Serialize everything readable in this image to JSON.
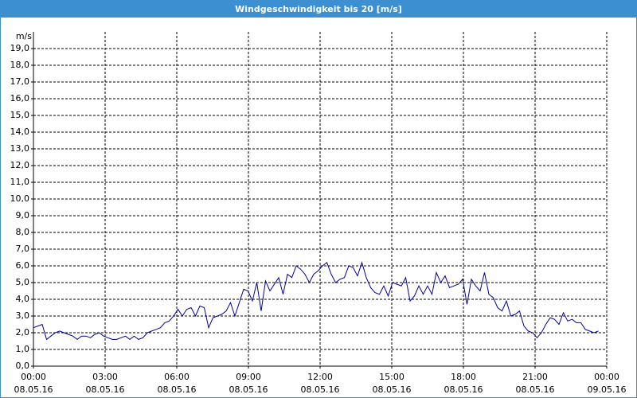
{
  "window_title": "Windgeschwindigkeit bis 20 [m/s]",
  "chart_data": {
    "type": "line",
    "y_unit_label": "m/s",
    "x": [
      0,
      11,
      22,
      33,
      44,
      55,
      66,
      77,
      88,
      99,
      110,
      121,
      132,
      143,
      154,
      165,
      176,
      187,
      198,
      209,
      220,
      231,
      242,
      253,
      264,
      275,
      286,
      297,
      308,
      319,
      330,
      341,
      352,
      363,
      374,
      385,
      396,
      407,
      418,
      429,
      440,
      451,
      462,
      473,
      484,
      495,
      506,
      517,
      528,
      539,
      550,
      561,
      572,
      583,
      594,
      605,
      616,
      627,
      638,
      649,
      660,
      671,
      682,
      693,
      704,
      715,
      726,
      737,
      748,
      759,
      770,
      781,
      792,
      803,
      814,
      825,
      836,
      847,
      858,
      869,
      880,
      891,
      902,
      913,
      924,
      935,
      946,
      957,
      968,
      979,
      990,
      1001,
      1012,
      1023,
      1034,
      1045,
      1056,
      1067,
      1078,
      1089,
      1100,
      1111,
      1122,
      1133,
      1144,
      1155,
      1166,
      1177,
      1188,
      1199,
      1210,
      1221,
      1232,
      1243,
      1254,
      1265,
      1276,
      1287,
      1298,
      1309,
      1320,
      1331,
      1342,
      1353,
      1364,
      1375,
      1386,
      1397,
      1408,
      1419
    ],
    "series": [
      {
        "name": "Windgeschwindigkeit",
        "color": "#0000a0",
        "values": [
          2.3,
          2.4,
          2.5,
          1.6,
          1.8,
          2.0,
          2.1,
          2.0,
          1.9,
          1.8,
          1.6,
          1.8,
          1.8,
          1.7,
          1.9,
          2.0,
          1.8,
          1.7,
          1.6,
          1.6,
          1.7,
          1.8,
          1.6,
          1.8,
          1.6,
          1.7,
          2.0,
          2.1,
          2.2,
          2.3,
          2.6,
          2.7,
          3.0,
          3.4,
          3.0,
          3.4,
          3.5,
          3.0,
          3.6,
          3.5,
          2.3,
          2.9,
          3.0,
          3.1,
          3.3,
          3.8,
          3.0,
          3.8,
          4.6,
          4.5,
          3.9,
          5.0,
          3.3,
          5.1,
          4.5,
          4.9,
          5.3,
          4.3,
          5.5,
          5.3,
          6.0,
          5.8,
          5.5,
          5.0,
          5.5,
          5.7,
          6.0,
          6.2,
          5.5,
          5.0,
          5.2,
          5.3,
          6.0,
          5.9,
          5.4,
          6.2,
          5.3,
          4.7,
          4.4,
          4.3,
          4.8,
          4.2,
          5.0,
          4.9,
          4.8,
          5.3,
          3.9,
          4.2,
          4.8,
          4.3,
          4.8,
          4.3,
          5.6,
          5.0,
          5.4,
          4.7,
          4.8,
          4.9,
          5.2,
          3.7,
          5.2,
          4.8,
          4.5,
          5.6,
          4.3,
          4.1,
          3.5,
          3.3,
          3.9,
          3.0,
          3.1,
          3.3,
          2.4,
          2.1,
          2.0,
          1.7,
          2.0,
          2.5,
          2.9,
          2.8,
          2.5,
          3.2,
          2.7,
          2.8,
          2.6,
          2.6,
          2.2,
          2.1,
          2.0,
          2.1
        ]
      }
    ],
    "xlim": [
      0,
      1440
    ],
    "xticks": [
      {
        "value": 0,
        "label": "00:00"
      },
      {
        "value": 180,
        "label": "03:00"
      },
      {
        "value": 360,
        "label": "06:00"
      },
      {
        "value": 540,
        "label": "09:00"
      },
      {
        "value": 720,
        "label": "12:00"
      },
      {
        "value": 900,
        "label": "15:00"
      },
      {
        "value": 1080,
        "label": "18:00"
      },
      {
        "value": 1260,
        "label": "21:00"
      },
      {
        "value": 1440,
        "label": "00:00"
      }
    ],
    "xtick_dates": [
      "08.05.16",
      "08.05.16",
      "08.05.16",
      "08.05.16",
      "08.05.16",
      "08.05.16",
      "08.05.16",
      "08.05.16",
      "09.05.16"
    ],
    "ylim": [
      0,
      20
    ],
    "yticks": [
      {
        "value": 0,
        "label": "0,0"
      },
      {
        "value": 1,
        "label": "1,0"
      },
      {
        "value": 2,
        "label": "2,0"
      },
      {
        "value": 3,
        "label": "3,0"
      },
      {
        "value": 4,
        "label": "4,0"
      },
      {
        "value": 5,
        "label": "5,0"
      },
      {
        "value": 6,
        "label": "6,0"
      },
      {
        "value": 7,
        "label": "7,0"
      },
      {
        "value": 8,
        "label": "8,0"
      },
      {
        "value": 9,
        "label": "9,0"
      },
      {
        "value": 10,
        "label": "10,0"
      },
      {
        "value": 11,
        "label": "11,0"
      },
      {
        "value": 12,
        "label": "12,0"
      },
      {
        "value": 13,
        "label": "13,0"
      },
      {
        "value": 14,
        "label": "14,0"
      },
      {
        "value": 15,
        "label": "15,0"
      },
      {
        "value": 16,
        "label": "16,0"
      },
      {
        "value": 17,
        "label": "17,0"
      },
      {
        "value": 18,
        "label": "18,0"
      },
      {
        "value": 19,
        "label": "19,0"
      }
    ],
    "grid": true
  }
}
